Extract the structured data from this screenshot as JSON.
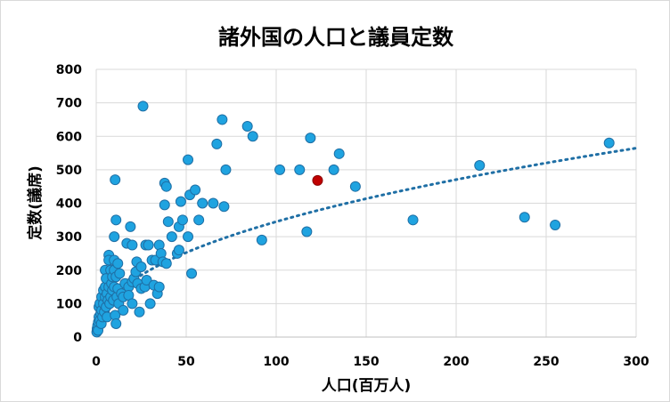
{
  "chart_data": {
    "type": "scatter",
    "title": "諸外国の人口と議員定数",
    "xlabel": "人口(百万人)",
    "ylabel": "定数(議席)",
    "xlim": [
      0,
      300
    ],
    "ylim": [
      0,
      800
    ],
    "x_ticks": [
      "0",
      "50",
      "100",
      "150",
      "200",
      "250",
      "300"
    ],
    "y_ticks": [
      "0",
      "100",
      "200",
      "300",
      "400",
      "500",
      "600",
      "700",
      "800"
    ],
    "grid": true,
    "legend": "none",
    "colors": {
      "point": "#1fa3e0",
      "point_edge": "#1f6fa5",
      "highlight": "#c00000",
      "trend": "#1f6fa5"
    },
    "trendline": {
      "type": "power",
      "a": 43.6,
      "b": 0.449
    },
    "highlight_points": [
      {
        "x": 123,
        "y": 468
      }
    ],
    "points": [
      {
        "x": 0.3,
        "y": 15
      },
      {
        "x": 0.5,
        "y": 25
      },
      {
        "x": 0.8,
        "y": 35
      },
      {
        "x": 1.0,
        "y": 20
      },
      {
        "x": 1.2,
        "y": 45
      },
      {
        "x": 1.5,
        "y": 60
      },
      {
        "x": 1.5,
        "y": 90
      },
      {
        "x": 2.0,
        "y": 50
      },
      {
        "x": 2.0,
        "y": 100
      },
      {
        "x": 2.5,
        "y": 70
      },
      {
        "x": 2.8,
        "y": 40
      },
      {
        "x": 3.0,
        "y": 120
      },
      {
        "x": 3.0,
        "y": 80
      },
      {
        "x": 3.5,
        "y": 60
      },
      {
        "x": 4.0,
        "y": 140
      },
      {
        "x": 4.0,
        "y": 100
      },
      {
        "x": 4.5,
        "y": 75
      },
      {
        "x": 5.0,
        "y": 150
      },
      {
        "x": 5.0,
        "y": 120
      },
      {
        "x": 5.0,
        "y": 200
      },
      {
        "x": 5.5,
        "y": 90
      },
      {
        "x": 5.5,
        "y": 175
      },
      {
        "x": 6.0,
        "y": 130
      },
      {
        "x": 6.0,
        "y": 60
      },
      {
        "x": 6.5,
        "y": 110
      },
      {
        "x": 7.0,
        "y": 245
      },
      {
        "x": 7.0,
        "y": 230
      },
      {
        "x": 7.0,
        "y": 150
      },
      {
        "x": 7.5,
        "y": 100
      },
      {
        "x": 8.0,
        "y": 200
      },
      {
        "x": 8.0,
        "y": 120
      },
      {
        "x": 8.5,
        "y": 160
      },
      {
        "x": 9.0,
        "y": 180
      },
      {
        "x": 9.0,
        "y": 140
      },
      {
        "x": 9.5,
        "y": 110
      },
      {
        "x": 10.0,
        "y": 300
      },
      {
        "x": 10.0,
        "y": 230
      },
      {
        "x": 10.0,
        "y": 200
      },
      {
        "x": 10.0,
        "y": 150
      },
      {
        "x": 10.5,
        "y": 470
      },
      {
        "x": 10.5,
        "y": 65
      },
      {
        "x": 11.0,
        "y": 350
      },
      {
        "x": 11.0,
        "y": 40
      },
      {
        "x": 11.0,
        "y": 180
      },
      {
        "x": 11.5,
        "y": 120
      },
      {
        "x": 12.0,
        "y": 220
      },
      {
        "x": 12.0,
        "y": 145
      },
      {
        "x": 12.5,
        "y": 100
      },
      {
        "x": 13.0,
        "y": 190
      },
      {
        "x": 14.0,
        "y": 130
      },
      {
        "x": 15.0,
        "y": 120
      },
      {
        "x": 15.0,
        "y": 80
      },
      {
        "x": 16.0,
        "y": 160
      },
      {
        "x": 17.0,
        "y": 280
      },
      {
        "x": 18.0,
        "y": 150
      },
      {
        "x": 18.0,
        "y": 125
      },
      {
        "x": 19.0,
        "y": 330
      },
      {
        "x": 20.0,
        "y": 275
      },
      {
        "x": 20.0,
        "y": 165
      },
      {
        "x": 20.0,
        "y": 100
      },
      {
        "x": 21.0,
        "y": 175
      },
      {
        "x": 22.0,
        "y": 195
      },
      {
        "x": 22.5,
        "y": 225
      },
      {
        "x": 23.0,
        "y": 160
      },
      {
        "x": 24.0,
        "y": 75
      },
      {
        "x": 25.0,
        "y": 210
      },
      {
        "x": 25.0,
        "y": 145
      },
      {
        "x": 26.0,
        "y": 690
      },
      {
        "x": 27.0,
        "y": 150
      },
      {
        "x": 27.5,
        "y": 275
      },
      {
        "x": 28.0,
        "y": 170
      },
      {
        "x": 29.0,
        "y": 275
      },
      {
        "x": 30.0,
        "y": 100
      },
      {
        "x": 31.0,
        "y": 230
      },
      {
        "x": 32.0,
        "y": 155
      },
      {
        "x": 33.0,
        "y": 230
      },
      {
        "x": 34.0,
        "y": 130
      },
      {
        "x": 35.0,
        "y": 275
      },
      {
        "x": 35.0,
        "y": 150
      },
      {
        "x": 36.0,
        "y": 250
      },
      {
        "x": 37.0,
        "y": 225
      },
      {
        "x": 38.0,
        "y": 460
      },
      {
        "x": 38.0,
        "y": 395
      },
      {
        "x": 39.0,
        "y": 450
      },
      {
        "x": 39.0,
        "y": 220
      },
      {
        "x": 40.0,
        "y": 345
      },
      {
        "x": 42.0,
        "y": 300
      },
      {
        "x": 45.0,
        "y": 250
      },
      {
        "x": 46.0,
        "y": 330
      },
      {
        "x": 46.0,
        "y": 260
      },
      {
        "x": 47.0,
        "y": 405
      },
      {
        "x": 48.0,
        "y": 350
      },
      {
        "x": 51.0,
        "y": 530
      },
      {
        "x": 51.0,
        "y": 300
      },
      {
        "x": 52.0,
        "y": 425
      },
      {
        "x": 53.0,
        "y": 190
      },
      {
        "x": 55.0,
        "y": 440
      },
      {
        "x": 57.0,
        "y": 350
      },
      {
        "x": 59.0,
        "y": 400
      },
      {
        "x": 65.0,
        "y": 400
      },
      {
        "x": 67.0,
        "y": 577
      },
      {
        "x": 70.0,
        "y": 650
      },
      {
        "x": 71.0,
        "y": 390
      },
      {
        "x": 72.0,
        "y": 500
      },
      {
        "x": 84.0,
        "y": 630
      },
      {
        "x": 87.0,
        "y": 600
      },
      {
        "x": 92.0,
        "y": 290
      },
      {
        "x": 102.0,
        "y": 500
      },
      {
        "x": 113.0,
        "y": 500
      },
      {
        "x": 117.0,
        "y": 315
      },
      {
        "x": 119.0,
        "y": 595
      },
      {
        "x": 132.0,
        "y": 500
      },
      {
        "x": 135.0,
        "y": 548
      },
      {
        "x": 144.0,
        "y": 450
      },
      {
        "x": 176.0,
        "y": 350
      },
      {
        "x": 213.0,
        "y": 513
      },
      {
        "x": 238.0,
        "y": 358
      },
      {
        "x": 255.0,
        "y": 335
      },
      {
        "x": 285.0,
        "y": 580
      }
    ]
  }
}
